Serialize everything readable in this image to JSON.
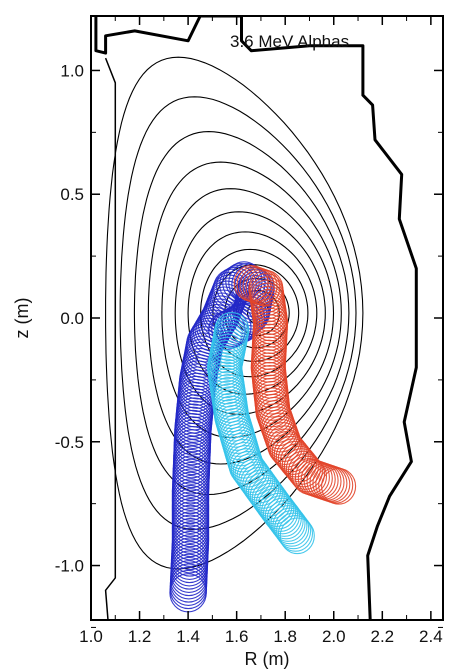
{
  "chart_data": {
    "type": "line",
    "title": "",
    "annotation": "3.6 MeV Alphas",
    "xlabel": "R (m)",
    "ylabel": "z (m)",
    "xlim": [
      1.0,
      2.45
    ],
    "ylim": [
      -1.22,
      1.22
    ],
    "xticks": [
      "1.0",
      "1.2",
      "1.4",
      "1.6",
      "1.8",
      "2.0",
      "2.2",
      "2.4"
    ],
    "yticks": [
      "-1.0",
      "-0.5",
      "0.0",
      "0.5",
      "1.0"
    ],
    "xtick_values": [
      1.0,
      1.2,
      1.4,
      1.6,
      1.8,
      2.0,
      2.2,
      2.4
    ],
    "ytick_values": [
      -1.0,
      -0.5,
      0.0,
      0.5,
      1.0
    ],
    "grid": false,
    "flux_surfaces": {
      "magnetic_axis": [
        1.69,
        0.02
      ],
      "count": 12,
      "color": "#000000"
    },
    "wall": {
      "color": "#000000",
      "points": [
        [
          1.02,
          1.22
        ],
        [
          1.02,
          1.08
        ],
        [
          1.06,
          1.07
        ],
        [
          1.06,
          1.14
        ],
        [
          1.18,
          1.16
        ],
        [
          1.4,
          1.12
        ],
        [
          1.45,
          1.22
        ],
        [
          1.62,
          1.22
        ],
        [
          1.62,
          1.12
        ],
        [
          1.66,
          1.08
        ],
        [
          1.9,
          1.1
        ],
        [
          2.12,
          1.1
        ],
        [
          2.12,
          0.9
        ],
        [
          2.16,
          0.86
        ],
        [
          2.17,
          0.72
        ],
        [
          2.28,
          0.58
        ],
        [
          2.27,
          0.4
        ],
        [
          2.34,
          0.2
        ],
        [
          2.34,
          -0.2
        ],
        [
          2.29,
          -0.42
        ],
        [
          2.32,
          -0.58
        ],
        [
          2.23,
          -0.72
        ],
        [
          2.18,
          -0.84
        ],
        [
          2.14,
          -0.96
        ],
        [
          2.15,
          -1.22
        ]
      ],
      "inner_limiter": [
        [
          1.07,
          -1.22
        ],
        [
          1.06,
          -1.1
        ],
        [
          1.1,
          -1.05
        ],
        [
          1.1,
          0.95
        ],
        [
          1.06,
          1.05
        ]
      ]
    },
    "series": [
      {
        "color": "#2228c8",
        "guiding_center": [
          [
            1.4,
            -1.11
          ],
          [
            1.41,
            -0.9
          ],
          [
            1.41,
            -0.7
          ],
          [
            1.42,
            -0.45
          ],
          [
            1.44,
            -0.25
          ],
          [
            1.47,
            -0.1
          ],
          [
            1.53,
            0.0
          ],
          [
            1.58,
            0.12
          ],
          [
            1.63,
            0.15
          ],
          [
            1.68,
            0.12
          ],
          [
            1.66,
            0.02
          ],
          [
            1.62,
            -0.02
          ],
          [
            1.56,
            -0.05
          ]
        ],
        "gyroradius": 0.075
      },
      {
        "color": "#35c3ea",
        "guiding_center": [
          [
            1.85,
            -0.88
          ],
          [
            1.75,
            -0.75
          ],
          [
            1.64,
            -0.6
          ],
          [
            1.58,
            -0.4
          ],
          [
            1.55,
            -0.2
          ],
          [
            1.58,
            -0.05
          ]
        ],
        "gyroradius": 0.07
      },
      {
        "color": "#e2452a",
        "guiding_center": [
          [
            2.02,
            -0.68
          ],
          [
            1.9,
            -0.64
          ],
          [
            1.8,
            -0.52
          ],
          [
            1.75,
            -0.38
          ],
          [
            1.73,
            -0.2
          ],
          [
            1.74,
            -0.02
          ],
          [
            1.72,
            0.12
          ],
          [
            1.66,
            0.14
          ]
        ],
        "gyroradius": 0.07
      }
    ]
  }
}
